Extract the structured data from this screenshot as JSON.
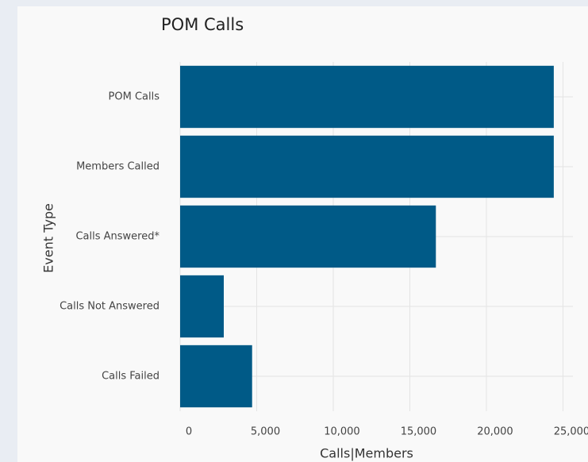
{
  "chart_data": {
    "type": "barh",
    "title": "POM Calls",
    "categories": [
      "POM Calls",
      "Members Called",
      "Calls Answered*",
      "Calls Not Answered",
      "Calls Failed"
    ],
    "values": [
      24400,
      24400,
      16700,
      2850,
      4700
    ],
    "color": "#005a87",
    "xlabel": "Calls|Members",
    "ylabel": "Event Type",
    "xlim": [
      0,
      25650
    ],
    "xticks": [
      0,
      {
        "value": 5000,
        "label": "5,000"
      },
      {
        "value": 10000,
        "label": "10,000"
      },
      {
        "value": 15000,
        "label": "15,000"
      },
      {
        "value": 20000,
        "label": "20,000"
      },
      {
        "value": 25000,
        "label": "25,000"
      }
    ],
    "grid": true
  }
}
